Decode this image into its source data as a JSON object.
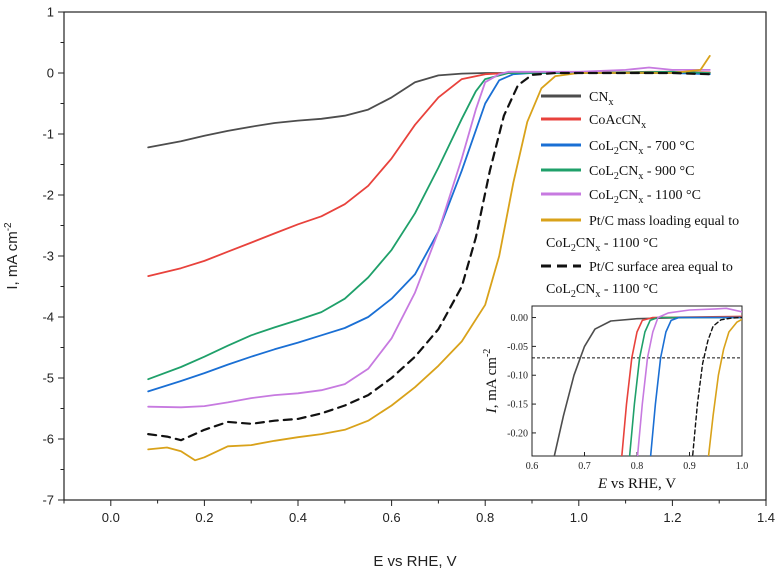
{
  "chart_data": {
    "type": "line",
    "xlabel": "E vs RHE, V",
    "ylabel": "I, mA cm",
    "ylabel_sup": "-2",
    "xlim": [
      -0.1,
      1.4
    ],
    "ylim": [
      -7,
      1
    ],
    "xticks": [
      0.0,
      0.2,
      0.4,
      0.6,
      0.8,
      1.0,
      1.2,
      1.4
    ],
    "xtick_labels": [
      "0.0",
      "0.2",
      "0.4",
      "0.6",
      "0.8",
      "1.0",
      "1.2",
      "1.4"
    ],
    "yticks": [
      1,
      0,
      -1,
      -2,
      -3,
      -4,
      -5,
      -6,
      -7
    ],
    "ytick_labels": [
      "1",
      "0",
      "-1",
      "-2",
      "-3",
      "-4",
      "-5",
      "-6",
      "-7"
    ],
    "series": [
      {
        "name": "CNx",
        "color": "#4d4d4d",
        "dash": false,
        "legend": {
          "main": "CN",
          "sub": "x",
          "rest": ""
        },
        "points": [
          [
            0.08,
            -1.22
          ],
          [
            0.15,
            -1.12
          ],
          [
            0.2,
            -1.03
          ],
          [
            0.25,
            -0.95
          ],
          [
            0.3,
            -0.88
          ],
          [
            0.35,
            -0.82
          ],
          [
            0.4,
            -0.78
          ],
          [
            0.45,
            -0.75
          ],
          [
            0.5,
            -0.7
          ],
          [
            0.55,
            -0.6
          ],
          [
            0.6,
            -0.4
          ],
          [
            0.65,
            -0.15
          ],
          [
            0.7,
            -0.04
          ],
          [
            0.75,
            -0.01
          ],
          [
            0.8,
            0.0
          ],
          [
            1.0,
            0.0
          ],
          [
            1.2,
            0.0
          ],
          [
            1.28,
            0.0
          ]
        ]
      },
      {
        "name": "CoAcCNx",
        "color": "#e8423c",
        "dash": false,
        "legend": {
          "main": "CoAcCN",
          "sub": "x",
          "rest": ""
        },
        "points": [
          [
            0.08,
            -3.33
          ],
          [
            0.15,
            -3.2
          ],
          [
            0.2,
            -3.08
          ],
          [
            0.25,
            -2.93
          ],
          [
            0.3,
            -2.78
          ],
          [
            0.35,
            -2.63
          ],
          [
            0.4,
            -2.48
          ],
          [
            0.45,
            -2.35
          ],
          [
            0.5,
            -2.15
          ],
          [
            0.55,
            -1.85
          ],
          [
            0.6,
            -1.4
          ],
          [
            0.65,
            -0.85
          ],
          [
            0.7,
            -0.4
          ],
          [
            0.75,
            -0.1
          ],
          [
            0.8,
            -0.02
          ],
          [
            0.85,
            0.0
          ],
          [
            1.0,
            0.0
          ],
          [
            1.15,
            0.02
          ],
          [
            1.2,
            0.02
          ],
          [
            1.28,
            0.01
          ]
        ]
      },
      {
        "name": "CoL2CNx - 700 °C",
        "color": "#1a6fd4",
        "dash": false,
        "legend": {
          "main": "CoL",
          "sub": "2",
          "main2": "CN",
          "sub2": "x",
          "rest": " - 700 °C"
        },
        "points": [
          [
            0.08,
            -5.22
          ],
          [
            0.15,
            -5.05
          ],
          [
            0.2,
            -4.92
          ],
          [
            0.25,
            -4.78
          ],
          [
            0.3,
            -4.65
          ],
          [
            0.35,
            -4.53
          ],
          [
            0.4,
            -4.42
          ],
          [
            0.45,
            -4.3
          ],
          [
            0.5,
            -4.18
          ],
          [
            0.55,
            -4.0
          ],
          [
            0.6,
            -3.7
          ],
          [
            0.65,
            -3.3
          ],
          [
            0.7,
            -2.6
          ],
          [
            0.75,
            -1.6
          ],
          [
            0.8,
            -0.5
          ],
          [
            0.83,
            -0.12
          ],
          [
            0.86,
            -0.02
          ],
          [
            0.9,
            0.0
          ],
          [
            1.0,
            0.0
          ],
          [
            1.2,
            0.0
          ],
          [
            1.28,
            -0.02
          ]
        ]
      },
      {
        "name": "CoL2CNx - 900 °C",
        "color": "#1fa06a",
        "dash": false,
        "legend": {
          "main": "CoL",
          "sub": "2",
          "main2": "CN",
          "sub2": "x",
          "rest": " - 900 °C"
        },
        "points": [
          [
            0.08,
            -5.02
          ],
          [
            0.15,
            -4.82
          ],
          [
            0.2,
            -4.65
          ],
          [
            0.25,
            -4.47
          ],
          [
            0.3,
            -4.3
          ],
          [
            0.35,
            -4.17
          ],
          [
            0.4,
            -4.05
          ],
          [
            0.45,
            -3.92
          ],
          [
            0.5,
            -3.7
          ],
          [
            0.55,
            -3.35
          ],
          [
            0.6,
            -2.9
          ],
          [
            0.65,
            -2.3
          ],
          [
            0.7,
            -1.55
          ],
          [
            0.75,
            -0.75
          ],
          [
            0.78,
            -0.3
          ],
          [
            0.8,
            -0.1
          ],
          [
            0.85,
            0.0
          ],
          [
            1.0,
            0.0
          ],
          [
            1.2,
            0.02
          ],
          [
            1.28,
            0.0
          ]
        ]
      },
      {
        "name": "CoL2CNx - 1100 °C",
        "color": "#c77ae0",
        "dash": false,
        "legend": {
          "main": "CoL",
          "sub": "2",
          "main2": "CN",
          "sub2": "x",
          "rest": " - 1100 °C"
        },
        "points": [
          [
            0.08,
            -5.47
          ],
          [
            0.15,
            -5.48
          ],
          [
            0.2,
            -5.46
          ],
          [
            0.25,
            -5.4
          ],
          [
            0.3,
            -5.33
          ],
          [
            0.35,
            -5.28
          ],
          [
            0.4,
            -5.25
          ],
          [
            0.45,
            -5.2
          ],
          [
            0.5,
            -5.1
          ],
          [
            0.55,
            -4.85
          ],
          [
            0.6,
            -4.35
          ],
          [
            0.65,
            -3.6
          ],
          [
            0.7,
            -2.6
          ],
          [
            0.75,
            -1.4
          ],
          [
            0.78,
            -0.6
          ],
          [
            0.8,
            -0.15
          ],
          [
            0.83,
            -0.02
          ],
          [
            0.85,
            0.02
          ],
          [
            1.0,
            0.02
          ],
          [
            1.1,
            0.05
          ],
          [
            1.15,
            0.09
          ],
          [
            1.2,
            0.05
          ],
          [
            1.28,
            0.05
          ]
        ]
      },
      {
        "name": "Pt/C mass loading equal to CoL2CNx - 1100 °C",
        "color": "#d9a21a",
        "dash": false,
        "legend": {
          "main": "Pt/C mass loading equal to",
          "line2": true,
          "sub_main": "CoL",
          "sub": "2",
          "main2": "CN",
          "sub2": "x",
          "rest": " - 1100 °C"
        },
        "points": [
          [
            0.08,
            -6.17
          ],
          [
            0.12,
            -6.14
          ],
          [
            0.15,
            -6.2
          ],
          [
            0.18,
            -6.35
          ],
          [
            0.2,
            -6.3
          ],
          [
            0.25,
            -6.12
          ],
          [
            0.3,
            -6.1
          ],
          [
            0.35,
            -6.03
          ],
          [
            0.4,
            -5.97
          ],
          [
            0.45,
            -5.92
          ],
          [
            0.5,
            -5.85
          ],
          [
            0.55,
            -5.7
          ],
          [
            0.6,
            -5.45
          ],
          [
            0.65,
            -5.15
          ],
          [
            0.7,
            -4.8
          ],
          [
            0.75,
            -4.4
          ],
          [
            0.8,
            -3.8
          ],
          [
            0.83,
            -3.0
          ],
          [
            0.86,
            -1.8
          ],
          [
            0.89,
            -0.8
          ],
          [
            0.92,
            -0.25
          ],
          [
            0.95,
            -0.05
          ],
          [
            1.0,
            0.0
          ],
          [
            1.2,
            0.0
          ],
          [
            1.26,
            0.05
          ],
          [
            1.28,
            0.28
          ]
        ]
      },
      {
        "name": "Pt/C surface area equal to CoL2CNx - 1100 °C",
        "color": "#111111",
        "dash": true,
        "legend": {
          "main": "Pt/C surface area equal to",
          "line2": true,
          "sub_main": "CoL",
          "sub": "2",
          "main2": "CN",
          "sub2": "x",
          "rest": " - 1100 °C"
        },
        "points": [
          [
            0.08,
            -5.92
          ],
          [
            0.12,
            -5.96
          ],
          [
            0.15,
            -6.02
          ],
          [
            0.2,
            -5.85
          ],
          [
            0.25,
            -5.72
          ],
          [
            0.3,
            -5.75
          ],
          [
            0.35,
            -5.7
          ],
          [
            0.4,
            -5.67
          ],
          [
            0.45,
            -5.58
          ],
          [
            0.5,
            -5.45
          ],
          [
            0.55,
            -5.28
          ],
          [
            0.6,
            -5.0
          ],
          [
            0.65,
            -4.65
          ],
          [
            0.7,
            -4.2
          ],
          [
            0.75,
            -3.5
          ],
          [
            0.78,
            -2.7
          ],
          [
            0.81,
            -1.6
          ],
          [
            0.84,
            -0.7
          ],
          [
            0.87,
            -0.2
          ],
          [
            0.9,
            -0.03
          ],
          [
            0.95,
            0.0
          ],
          [
            1.0,
            0.0
          ],
          [
            1.2,
            0.0
          ],
          [
            1.28,
            -0.02
          ]
        ]
      }
    ],
    "inset": {
      "xlabel_italic": "E",
      "xlabel_rest": " vs RHE, V",
      "ylabel_italic": "I",
      "ylabel_rest": ", mA cm",
      "ylabel_sup": "-2",
      "xlim": [
        0.6,
        1.0
      ],
      "ylim": [
        -0.24,
        0.02
      ],
      "xticks": [
        0.6,
        0.7,
        0.8,
        0.9,
        1.0
      ],
      "xtick_labels": [
        "0.6",
        "0.7",
        "0.8",
        "0.9",
        "1.0"
      ],
      "yticks": [
        0.0,
        -0.05,
        -0.1,
        -0.15,
        -0.2
      ],
      "ytick_labels": [
        "0.00",
        "-0.05",
        "-0.10",
        "-0.15",
        "-0.20"
      ],
      "reference_line_y": -0.07,
      "series": [
        {
          "color": "#4d4d4d",
          "dash": false,
          "points": [
            [
              0.64,
              -0.25
            ],
            [
              0.66,
              -0.17
            ],
            [
              0.68,
              -0.1
            ],
            [
              0.7,
              -0.05
            ],
            [
              0.72,
              -0.02
            ],
            [
              0.75,
              -0.006
            ],
            [
              0.8,
              -0.002
            ],
            [
              0.9,
              0.0
            ],
            [
              1.0,
              0.0
            ]
          ]
        },
        {
          "color": "#e8423c",
          "dash": false,
          "points": [
            [
              0.77,
              -0.25
            ],
            [
              0.78,
              -0.15
            ],
            [
              0.79,
              -0.07
            ],
            [
              0.8,
              -0.025
            ],
            [
              0.81,
              -0.005
            ],
            [
              0.83,
              0.0
            ],
            [
              1.0,
              0.002
            ]
          ]
        },
        {
          "color": "#1fa06a",
          "dash": false,
          "points": [
            [
              0.785,
              -0.25
            ],
            [
              0.795,
              -0.15
            ],
            [
              0.805,
              -0.07
            ],
            [
              0.815,
              -0.025
            ],
            [
              0.825,
              -0.005
            ],
            [
              0.84,
              0.0
            ],
            [
              1.0,
              0.0
            ]
          ]
        },
        {
          "color": "#c77ae0",
          "dash": false,
          "points": [
            [
              0.8,
              -0.25
            ],
            [
              0.81,
              -0.15
            ],
            [
              0.82,
              -0.07
            ],
            [
              0.83,
              -0.025
            ],
            [
              0.84,
              0.0
            ],
            [
              0.86,
              0.008
            ],
            [
              0.9,
              0.013
            ],
            [
              0.95,
              0.015
            ],
            [
              0.97,
              0.016
            ],
            [
              1.0,
              0.01
            ]
          ]
        },
        {
          "color": "#1a6fd4",
          "dash": false,
          "points": [
            [
              0.825,
              -0.25
            ],
            [
              0.835,
              -0.15
            ],
            [
              0.845,
              -0.07
            ],
            [
              0.855,
              -0.025
            ],
            [
              0.865,
              -0.005
            ],
            [
              0.88,
              0.0
            ],
            [
              1.0,
              0.0
            ]
          ]
        },
        {
          "color": "#111111",
          "dash": true,
          "points": [
            [
              0.905,
              -0.25
            ],
            [
              0.915,
              -0.15
            ],
            [
              0.925,
              -0.08
            ],
            [
              0.935,
              -0.04
            ],
            [
              0.945,
              -0.015
            ],
            [
              0.96,
              -0.004
            ],
            [
              0.98,
              -0.001
            ],
            [
              1.0,
              0.0
            ]
          ]
        },
        {
          "color": "#d9a21a",
          "dash": false,
          "points": [
            [
              0.935,
              -0.25
            ],
            [
              0.945,
              -0.17
            ],
            [
              0.955,
              -0.1
            ],
            [
              0.965,
              -0.055
            ],
            [
              0.975,
              -0.025
            ],
            [
              0.99,
              -0.008
            ],
            [
              1.0,
              -0.003
            ]
          ]
        }
      ]
    }
  }
}
